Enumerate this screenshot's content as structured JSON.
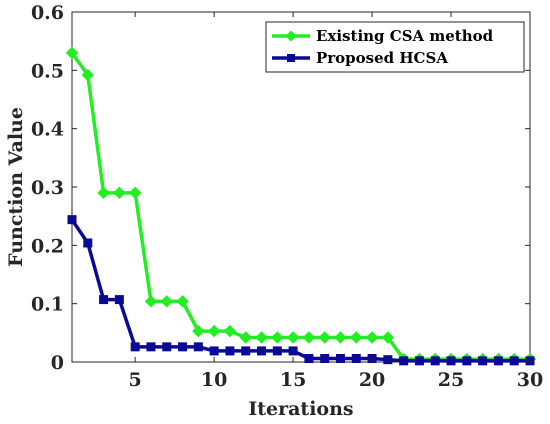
{
  "chart_data": {
    "type": "line",
    "title": "",
    "xlabel": "Iterations",
    "ylabel": "Function Value",
    "xlim": [
      1,
      30
    ],
    "ylim": [
      0,
      0.6
    ],
    "x_ticks": [
      5,
      10,
      15,
      20,
      25,
      30
    ],
    "y_ticks": [
      0,
      0.1,
      0.2,
      0.3,
      0.4,
      0.5,
      0.6
    ],
    "x_tick_labels": [
      "5",
      "10",
      "15",
      "20",
      "25",
      "30"
    ],
    "y_tick_labels": [
      "0",
      "0.1",
      "0.2",
      "0.3",
      "0.4",
      "0.5",
      "0.6"
    ],
    "grid": false,
    "legend_position": "top-right",
    "x": [
      1,
      2,
      3,
      4,
      5,
      6,
      7,
      8,
      9,
      10,
      11,
      12,
      13,
      14,
      15,
      16,
      17,
      18,
      19,
      20,
      21,
      22,
      23,
      24,
      25,
      26,
      27,
      28,
      29,
      30
    ],
    "series": [
      {
        "name": "Existing CSA method",
        "color": "#22ee22",
        "marker": "diamond",
        "values": [
          0.53,
          0.492,
          0.29,
          0.29,
          0.29,
          0.104,
          0.104,
          0.104,
          0.053,
          0.053,
          0.053,
          0.042,
          0.042,
          0.042,
          0.042,
          0.042,
          0.042,
          0.042,
          0.042,
          0.042,
          0.042,
          0.005,
          0.005,
          0.005,
          0.005,
          0.005,
          0.005,
          0.005,
          0.005,
          0.005
        ]
      },
      {
        "name": "Proposed HCSA",
        "color": "#0a0a96",
        "marker": "square",
        "values": [
          0.244,
          0.204,
          0.107,
          0.107,
          0.026,
          0.026,
          0.026,
          0.026,
          0.026,
          0.019,
          0.019,
          0.019,
          0.019,
          0.019,
          0.019,
          0.006,
          0.006,
          0.006,
          0.006,
          0.006,
          0.004,
          0.002,
          0.002,
          0.002,
          0.002,
          0.002,
          0.002,
          0.002,
          0.002,
          0.002
        ]
      }
    ]
  }
}
